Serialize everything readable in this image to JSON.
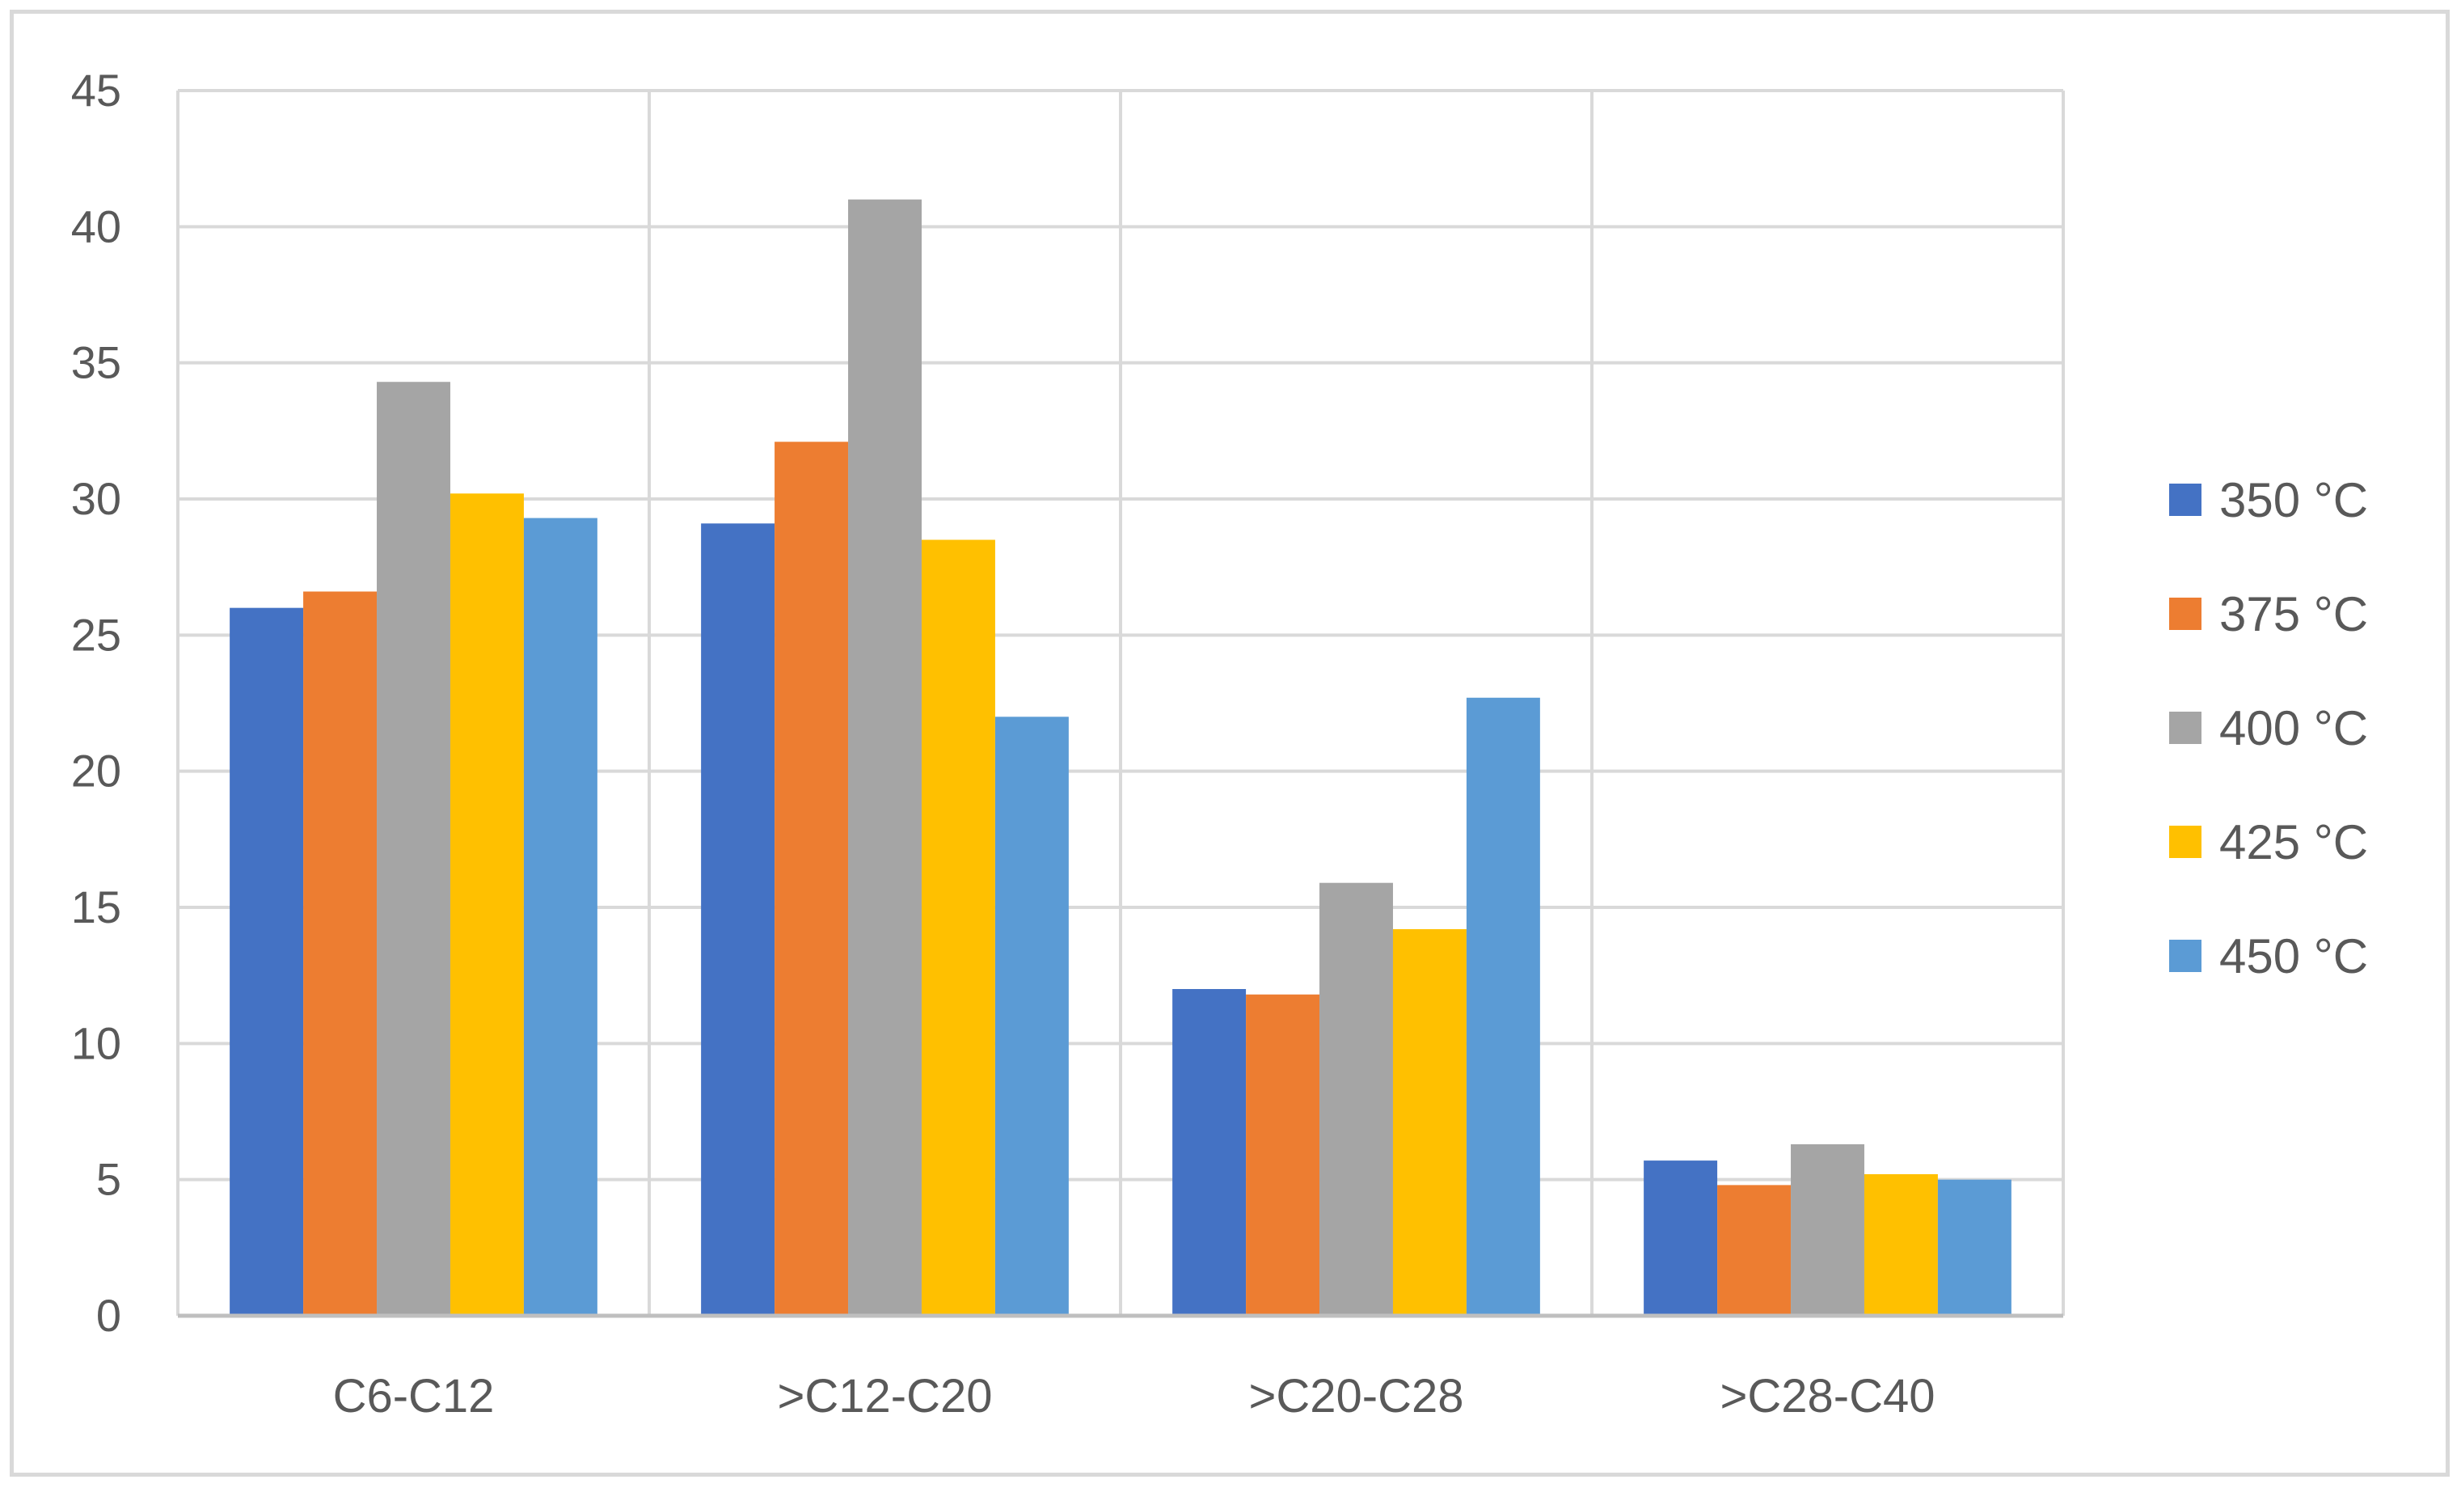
{
  "chart_data": {
    "type": "bar",
    "title": "",
    "xlabel": "",
    "ylabel": "",
    "ylim": [
      0,
      45
    ],
    "yticks": [
      0,
      5,
      10,
      15,
      20,
      25,
      30,
      35,
      40,
      45
    ],
    "grid": true,
    "legend_position": "right",
    "categories": [
      "C6-C12",
      ">C12-C20",
      ">C20-C28",
      ">C28-C40"
    ],
    "series": [
      {
        "name": "350 °C",
        "color": "#4472C4",
        "values": [
          26.0,
          29.1,
          12.0,
          5.7
        ]
      },
      {
        "name": "375 °C",
        "color": "#ED7D31",
        "values": [
          26.6,
          32.1,
          11.8,
          4.8
        ]
      },
      {
        "name": "400 °C",
        "color": "#A5A5A5",
        "values": [
          34.3,
          41.0,
          15.9,
          6.3
        ]
      },
      {
        "name": "425 °C",
        "color": "#FFC000",
        "values": [
          30.2,
          28.5,
          14.2,
          5.2
        ]
      },
      {
        "name": "450 °C",
        "color": "#5B9BD5",
        "values": [
          29.3,
          22.0,
          22.7,
          5.0
        ]
      }
    ]
  }
}
